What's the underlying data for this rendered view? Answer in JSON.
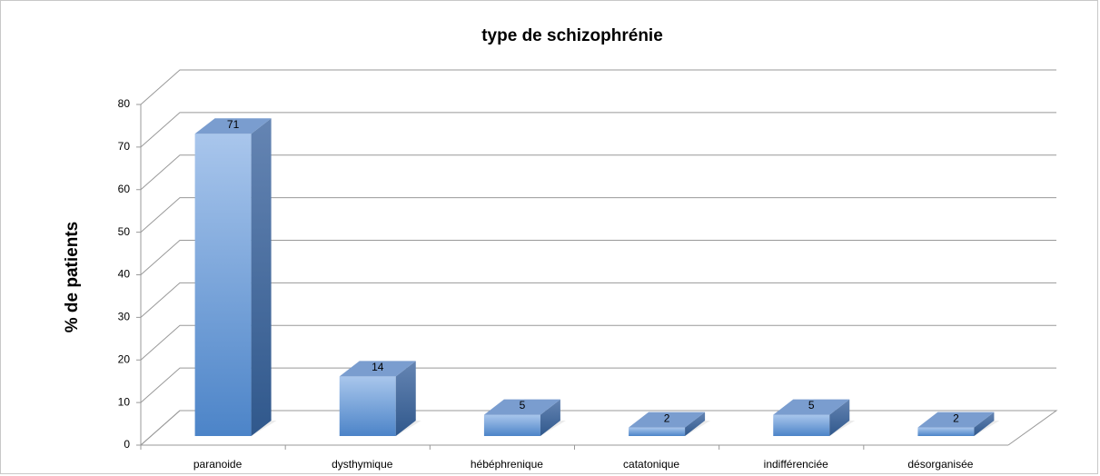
{
  "chart_data": {
    "type": "bar3d",
    "title": "type de schizophrénie",
    "ylabel": "% de patients",
    "categories": [
      "paranoide",
      "dysthymique",
      "hébéphrenique",
      "catatonique",
      "indifférenciée",
      "désorganisée"
    ],
    "values": [
      71,
      14,
      5,
      2,
      5,
      2
    ],
    "color": "#4f86c6",
    "ylim": [
      0,
      80
    ],
    "yticks": [
      0,
      10,
      20,
      30,
      40,
      50,
      60,
      70,
      80
    ],
    "grid": true
  }
}
